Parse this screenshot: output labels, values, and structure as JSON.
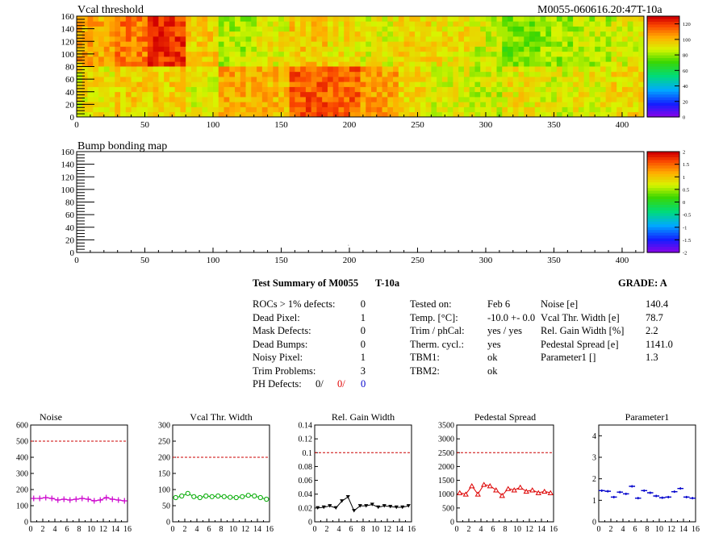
{
  "header": {
    "title": "Vcal threshold",
    "module_id": "M0055-060616.20:47T-10a"
  },
  "bump_title": "Bump bonding map",
  "summary": {
    "title": "Test Summary of M0055",
    "temp_tag": "T-10a",
    "grade": "GRADE:  A",
    "defects": [
      {
        "label": "ROCs > 1% defects:",
        "value": "0"
      },
      {
        "label": "Dead Pixel:",
        "value": "1"
      },
      {
        "label": "Mask Defects:",
        "value": "0"
      },
      {
        "label": "Dead Bumps:",
        "value": "0"
      },
      {
        "label": "Noisy Pixel:",
        "value": "1"
      },
      {
        "label": "Trim Problems:",
        "value": "3"
      }
    ],
    "ph_defects": {
      "label": "PH Defects:",
      "v1": "0/",
      "v2": "0/",
      "v3": "0"
    },
    "conditions": [
      {
        "label": "Tested on:",
        "value": "Feb 6"
      },
      {
        "label": "Temp. [°C]:",
        "value": "-10.0 +- 0.0"
      },
      {
        "label": "Trim / phCal:",
        "value": "yes / yes"
      },
      {
        "label": "Therm. cycl.:",
        "value": "yes"
      },
      {
        "label": "TBM1:",
        "value": "ok"
      },
      {
        "label": "TBM2:",
        "value": "ok"
      }
    ],
    "results": [
      {
        "label": "Noise [e]",
        "value": "140.4"
      },
      {
        "label": "Vcal Thr. Width [e]",
        "value": "78.7"
      },
      {
        "label": "Rel. Gain Width [%]",
        "value": "2.2"
      },
      {
        "label": "Pedestal Spread [e]",
        "value": "1141.0"
      },
      {
        "label": "Parameter1 []",
        "value": "1.3"
      }
    ]
  },
  "chart_data": [
    {
      "type": "heatmap",
      "title": "Vcal threshold",
      "xlim": [
        0,
        416
      ],
      "ylim": [
        0,
        160
      ],
      "xticks": [
        0,
        50,
        100,
        150,
        200,
        250,
        300,
        350,
        400
      ],
      "yticks": [
        0,
        20,
        40,
        60,
        80,
        100,
        120,
        140,
        160
      ],
      "zlim": [
        0,
        130
      ],
      "zticks": [
        0,
        20,
        40,
        60,
        80,
        100,
        120
      ],
      "blocks_upper": [
        104,
        112,
        122,
        98,
        84,
        92,
        99,
        95,
        91,
        96,
        94,
        88,
        78,
        82,
        85,
        90
      ],
      "blocks_lower": [
        93,
        97,
        97,
        91,
        104,
        102,
        117,
        115,
        106,
        95,
        90,
        87,
        93,
        90,
        92,
        96
      ]
    },
    {
      "type": "heatmap",
      "title": "Bump bonding map",
      "xlim": [
        0,
        416
      ],
      "ylim": [
        0,
        160
      ],
      "xticks": [
        0,
        50,
        100,
        150,
        200,
        250,
        300,
        350,
        400
      ],
      "yticks": [
        0,
        20,
        40,
        60,
        80,
        100,
        120,
        140,
        160
      ],
      "zlim": [
        -2,
        2
      ],
      "zticks": [
        "2",
        "1.5",
        "1",
        "0.5",
        "0",
        "-0.5",
        "-1",
        "-1.5",
        "-2"
      ]
    },
    {
      "type": "line",
      "title": "Noise",
      "color": "#cc00cc",
      "marker": "cross",
      "ylim": [
        0,
        600
      ],
      "yticks": [
        0,
        100,
        200,
        300,
        400,
        500,
        600
      ],
      "xlim": [
        0,
        16
      ],
      "xticks": [
        0,
        2,
        4,
        6,
        8,
        10,
        12,
        14,
        16
      ],
      "limit": 500,
      "values": [
        145,
        145,
        150,
        145,
        135,
        140,
        135,
        140,
        145,
        140,
        130,
        135,
        150,
        140,
        135,
        130
      ]
    },
    {
      "type": "line",
      "title": "Vcal Thr. Width",
      "color": "#00aa00",
      "marker": "circle",
      "ylim": [
        0,
        300
      ],
      "yticks": [
        0,
        50,
        100,
        150,
        200,
        250,
        300
      ],
      "xlim": [
        0,
        16
      ],
      "xticks": [
        0,
        2,
        4,
        6,
        8,
        10,
        12,
        14,
        16
      ],
      "limit": 200,
      "values": [
        75,
        80,
        88,
        78,
        75,
        80,
        78,
        80,
        78,
        76,
        75,
        78,
        82,
        80,
        75,
        70
      ]
    },
    {
      "type": "line",
      "title": "Rel. Gain Width",
      "color": "#000000",
      "marker": "triangle-down",
      "ylim": [
        0,
        0.14
      ],
      "yticks": [
        0,
        0.02,
        0.04,
        0.06,
        0.08,
        0.1,
        0.12,
        0.14
      ],
      "xlim": [
        0,
        16
      ],
      "xticks": [
        0,
        2,
        4,
        6,
        8,
        10,
        12,
        14,
        16
      ],
      "limit": 0.1,
      "values": [
        0.02,
        0.021,
        0.023,
        0.02,
        0.03,
        0.036,
        0.016,
        0.023,
        0.023,
        0.025,
        0.021,
        0.023,
        0.022,
        0.021,
        0.021,
        0.023
      ]
    },
    {
      "type": "line",
      "title": "Pedestal Spread",
      "color": "#dd0000",
      "marker": "triangle-up",
      "ylim": [
        0,
        3500
      ],
      "yticks": [
        0,
        500,
        1000,
        1500,
        2000,
        2500,
        3000,
        3500
      ],
      "xlim": [
        0,
        16
      ],
      "xticks": [
        0,
        2,
        4,
        6,
        8,
        10,
        12,
        14,
        16
      ],
      "limit": 2500,
      "values": [
        1050,
        1000,
        1300,
        1000,
        1350,
        1300,
        1150,
        950,
        1200,
        1150,
        1250,
        1100,
        1150,
        1050,
        1100,
        1050
      ]
    },
    {
      "type": "scatter",
      "title": "Parameter1",
      "color": "#0000cc",
      "marker": "hbar",
      "ylim": [
        0,
        4.5
      ],
      "yticks": [
        0,
        1,
        2,
        3,
        4
      ],
      "xlim": [
        0,
        16
      ],
      "xticks": [
        0,
        2,
        4,
        6,
        8,
        10,
        12,
        14,
        16
      ],
      "values": [
        1.45,
        1.42,
        1.15,
        1.38,
        1.3,
        1.65,
        1.1,
        1.45,
        1.35,
        1.2,
        1.12,
        1.15,
        1.4,
        1.55,
        1.15,
        1.1
      ]
    }
  ]
}
